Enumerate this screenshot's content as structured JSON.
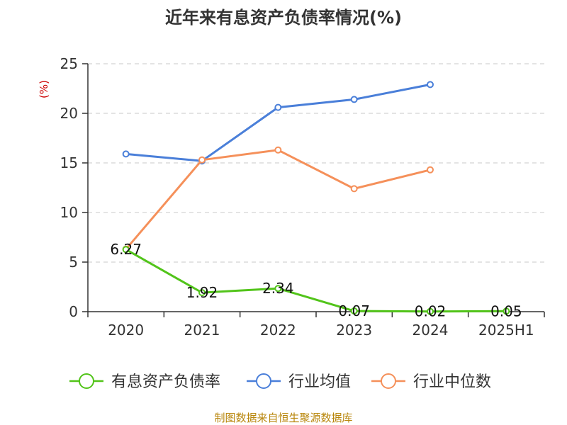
{
  "chart_data": {
    "type": "line",
    "title": "近年来有息资产负债率情况(%)",
    "ylabel": "(%)",
    "xlabel": "",
    "categories": [
      "2020",
      "2021",
      "2022",
      "2023",
      "2024",
      "2025H1"
    ],
    "ylim": [
      0,
      25
    ],
    "yticks": [
      "0",
      "5",
      "10",
      "15",
      "20",
      "25"
    ],
    "grid": true,
    "legend_position": "bottom",
    "series": [
      {
        "name": "有息资产负债率",
        "color": "#52c41a",
        "values": [
          6.27,
          1.92,
          2.34,
          0.07,
          0.02,
          0.05
        ],
        "labels": [
          "6.27",
          "1.92",
          "2.34",
          "0.07",
          "0.02",
          "0.05"
        ]
      },
      {
        "name": "行业均值",
        "color": "#4a7fd9",
        "values": [
          15.9,
          15.2,
          20.6,
          21.4,
          22.9,
          null
        ]
      },
      {
        "name": "行业中位数",
        "color": "#f5905a",
        "values": [
          6.3,
          15.3,
          16.3,
          12.4,
          14.3,
          null
        ]
      }
    ]
  },
  "source": "制图数据来自恒生聚源数据库"
}
